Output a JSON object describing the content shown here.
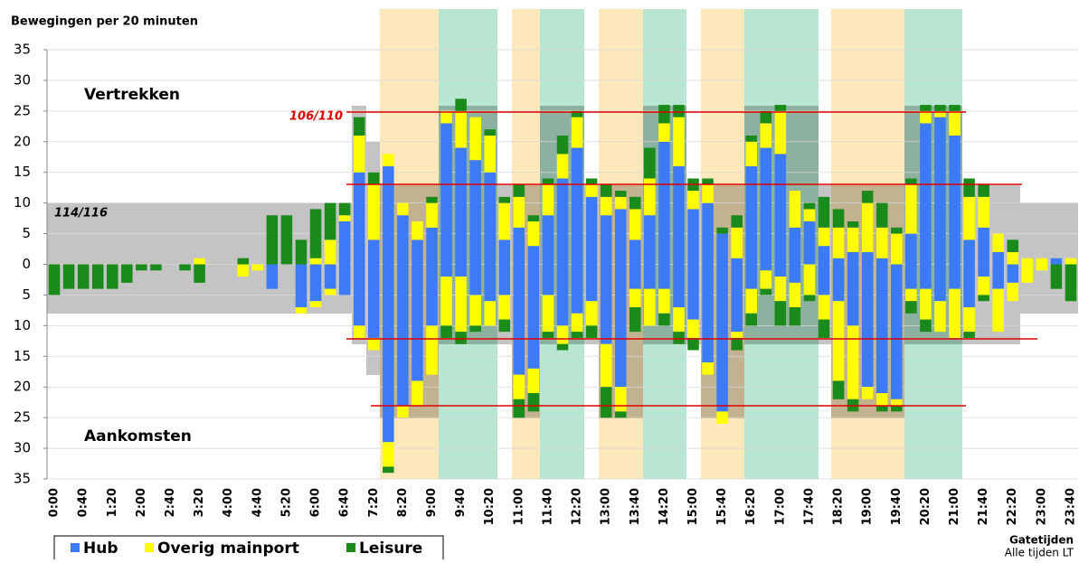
{
  "chart_data": {
    "type": "bar",
    "title": "Bewegingen per 20 minuten",
    "x_label": "Gatetijden",
    "note": "Alle tijden LT",
    "departures_label": "Vertrekken",
    "arrivals_label": "Aankomsten",
    "capacity_labels": [
      "106/110",
      "114/116"
    ],
    "categories": [
      "0:00",
      null,
      "0:40",
      null,
      "1:20",
      null,
      "2:00",
      null,
      "2:40",
      null,
      "3:20",
      null,
      "4:00",
      null,
      "4:40",
      null,
      "5:20",
      null,
      "6:00",
      null,
      "6:40",
      null,
      "7:20",
      null,
      "8:20",
      null,
      "9:00",
      null,
      "9:40",
      null,
      "10:20",
      null,
      "11:00",
      null,
      "11:40",
      null,
      "12:20",
      null,
      "13:00",
      null,
      "13:40",
      null,
      "14:20",
      null,
      "15:00",
      null,
      "15:40",
      null,
      "16:20",
      null,
      "17:00",
      null,
      "17:40",
      null,
      "18:20",
      null,
      "19:00",
      null,
      "19:40",
      null,
      "20:20",
      null,
      "21:00",
      null,
      "21:40",
      null,
      "22:20",
      null,
      "23:00",
      null,
      "23:40"
    ],
    "series": [
      {
        "name": "Hub",
        "color": "#3d7af5",
        "departures": [
          0,
          0,
          0,
          0,
          0,
          0,
          0,
          0,
          0,
          0,
          0,
          0,
          0,
          0,
          0,
          0,
          0,
          0,
          0,
          0,
          7,
          15,
          4,
          16,
          8,
          4,
          6,
          23,
          19,
          17,
          15,
          4,
          6,
          3,
          8,
          14,
          19,
          11,
          8,
          9,
          4,
          8,
          20,
          16,
          9,
          10,
          5,
          1,
          16,
          19,
          18,
          6,
          7,
          3,
          1,
          2,
          2,
          1,
          0,
          5,
          23,
          24,
          21,
          4,
          6,
          2,
          0,
          0,
          0,
          1,
          0
        ],
        "arrivals": [
          0,
          0,
          0,
          0,
          0,
          0,
          0,
          0,
          0,
          0,
          0,
          0,
          0,
          0,
          0,
          -4,
          0,
          -7,
          -6,
          -4,
          -5,
          -10,
          -12,
          -29,
          -23,
          -19,
          -10,
          -2,
          -2,
          -5,
          -6,
          -5,
          -18,
          -17,
          -5,
          -10,
          -8,
          -6,
          -13,
          -20,
          -4,
          -4,
          -4,
          -7,
          -9,
          -16,
          -24,
          -11,
          -4,
          -1,
          -2,
          -3,
          0,
          -5,
          -6,
          -10,
          -20,
          -21,
          -22,
          -4,
          -4,
          -6,
          -4,
          -7,
          -2,
          -4,
          -3,
          0,
          0,
          0,
          0
        ]
      },
      {
        "name": "Overig mainport",
        "color": "#ffff00",
        "departures": [
          0,
          0,
          0,
          0,
          0,
          0,
          0,
          0,
          0,
          0,
          1,
          0,
          0,
          0,
          0,
          0,
          0,
          0,
          1,
          4,
          1,
          6,
          9,
          2,
          2,
          3,
          4,
          2,
          6,
          7,
          6,
          6,
          5,
          4,
          5,
          4,
          5,
          2,
          3,
          2,
          5,
          6,
          3,
          8,
          3,
          3,
          0,
          5,
          4,
          4,
          7,
          6,
          2,
          3,
          5,
          4,
          8,
          5,
          5,
          8,
          2,
          1,
          4,
          7,
          5,
          3,
          2,
          1,
          1,
          0,
          1
        ],
        "arrivals": [
          0,
          0,
          0,
          0,
          0,
          0,
          0,
          0,
          0,
          0,
          0,
          0,
          0,
          -2,
          -1,
          0,
          0,
          -1,
          -1,
          -1,
          0,
          -2,
          -2,
          -4,
          -2,
          -4,
          -8,
          -8,
          -9,
          -5,
          -4,
          -4,
          -4,
          -4,
          -6,
          -3,
          -3,
          -4,
          -7,
          -4,
          -3,
          -6,
          -4,
          -4,
          -3,
          -2,
          -2,
          -1,
          -4,
          -3,
          -4,
          -4,
          -5,
          -4,
          -13,
          -12,
          -2,
          -2,
          -1,
          -2,
          -5,
          -5,
          -8,
          -4,
          -3,
          -7,
          -3,
          -3,
          -1,
          0,
          0
        ]
      },
      {
        "name": "Leisure",
        "color": "#1a8a1a",
        "departures": [
          0,
          0,
          0,
          0,
          0,
          0,
          0,
          0,
          0,
          0,
          0,
          0,
          0,
          1,
          0,
          8,
          8,
          4,
          8,
          6,
          2,
          3,
          2,
          0,
          0,
          0,
          1,
          0,
          2,
          0,
          1,
          1,
          2,
          1,
          1,
          3,
          1,
          1,
          2,
          1,
          2,
          5,
          3,
          2,
          2,
          1,
          1,
          2,
          1,
          2,
          1,
          0,
          1,
          5,
          3,
          1,
          2,
          4,
          1,
          1,
          1,
          1,
          1,
          3,
          2,
          0,
          2,
          0,
          0,
          0,
          0
        ],
        "arrivals": [
          -5,
          -4,
          -4,
          -4,
          -4,
          -3,
          -1,
          -1,
          0,
          -1,
          -3,
          0,
          0,
          0,
          0,
          0,
          0,
          0,
          0,
          0,
          0,
          0,
          0,
          -1,
          0,
          0,
          0,
          -2,
          -2,
          -1,
          0,
          -2,
          -3,
          -3,
          -1,
          -1,
          -1,
          -2,
          -5,
          -1,
          -4,
          0,
          -2,
          -2,
          -2,
          0,
          0,
          -2,
          -2,
          -1,
          -4,
          -3,
          -1,
          -3,
          -3,
          -2,
          0,
          -1,
          -1,
          -2,
          -2,
          0,
          0,
          -1,
          -1,
          0,
          0,
          0,
          0,
          -4,
          -6
        ]
      }
    ],
    "ylim": [
      -35,
      35
    ],
    "yticks": [
      {
        "value": -35,
        "label": "35"
      },
      {
        "value": -30,
        "label": "30"
      },
      {
        "value": -25,
        "label": "25"
      },
      {
        "value": -20,
        "label": "20"
      },
      {
        "value": -15,
        "label": "15"
      },
      {
        "value": -10,
        "label": "10"
      },
      {
        "value": -5,
        "label": "5"
      },
      0,
      5,
      10,
      15,
      20,
      25,
      30,
      35
    ],
    "grid": true
  }
}
